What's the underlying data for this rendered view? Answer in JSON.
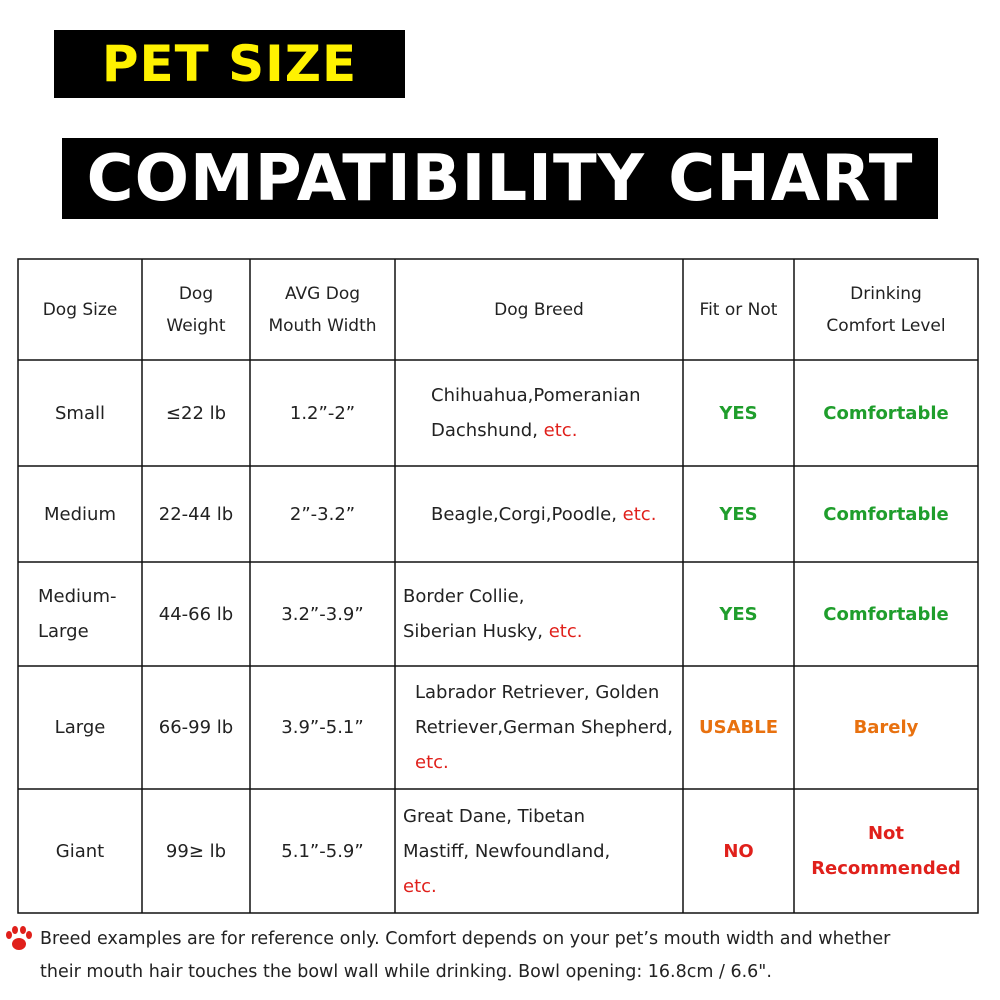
{
  "header": {
    "title1": "PET SIZE",
    "title2": "COMPATIBILITY CHART"
  },
  "table": {
    "headers": [
      [
        "Dog Size"
      ],
      [
        "Dog",
        "Weight"
      ],
      [
        "AVG Dog",
        "Mouth Width"
      ],
      [
        "Dog Breed"
      ],
      [
        "Fit or Not"
      ],
      [
        "Drinking",
        "Comfort Level"
      ]
    ],
    "rows": [
      {
        "size": [
          "Small"
        ],
        "weight": "≤22 lb",
        "mouth": "1.2”-2”",
        "breed": [
          [
            {
              "text": "Chihuahua,Pomeranian"
            }
          ],
          [
            {
              "text": "Dachshund, "
            },
            {
              "text": "etc.",
              "color": "#e0201b"
            }
          ]
        ],
        "fit": {
          "text": "YES",
          "color": "#1f9e2c"
        },
        "comfort": [
          {
            "text": "Comfortable",
            "color": "#1f9e2c"
          }
        ]
      },
      {
        "size": [
          "Medium"
        ],
        "weight": "22-44 lb",
        "mouth": "2”-3.2”",
        "breed": [
          [
            {
              "text": "Beagle,Corgi,Poodle, "
            },
            {
              "text": "etc.",
              "color": "#e0201b"
            }
          ]
        ],
        "fit": {
          "text": "YES",
          "color": "#1f9e2c"
        },
        "comfort": [
          {
            "text": "Comfortable",
            "color": "#1f9e2c"
          }
        ]
      },
      {
        "size": [
          "Medium-",
          "Large"
        ],
        "weight": "44-66 lb",
        "mouth": "3.2”-3.9”",
        "breed": [
          [
            {
              "text": "Border Collie,"
            }
          ],
          [
            {
              "text": "Siberian Husky, "
            },
            {
              "text": "etc.",
              "color": "#e0201b"
            }
          ]
        ],
        "fit": {
          "text": "YES",
          "color": "#1f9e2c"
        },
        "comfort": [
          {
            "text": "Comfortable",
            "color": "#1f9e2c"
          }
        ]
      },
      {
        "size": [
          "Large"
        ],
        "weight": "66-99 lb",
        "mouth": "3.9”-5.1”",
        "breed": [
          [
            {
              "text": "Labrador Retriever, Golden"
            }
          ],
          [
            {
              "text": "Retriever,German Shepherd,"
            }
          ],
          [
            {
              "text": "etc.",
              "color": "#e0201b"
            }
          ]
        ],
        "fit": {
          "text": "USABLE",
          "color": "#e8710f"
        },
        "comfort": [
          {
            "text": "Barely",
            "color": "#e8710f"
          }
        ]
      },
      {
        "size": [
          "Giant"
        ],
        "weight": "99≥ lb",
        "mouth": "5.1”-5.9”",
        "breed": [
          [
            {
              "text": "Great Dane, Tibetan"
            }
          ],
          [
            {
              "text": "Mastiff, Newfoundland,"
            }
          ],
          [
            {
              "text": "etc.",
              "color": "#e0201b"
            }
          ]
        ],
        "fit": {
          "text": "NO",
          "color": "#e0201b"
        },
        "comfort": [
          {
            "text": "Not",
            "color": "#e0201b"
          },
          {
            "text": "Recommended",
            "color": "#e0201b"
          }
        ]
      }
    ]
  },
  "footnote": [
    "Breed examples are for reference only. Comfort depends on your pet’s mouth width and whether",
    "their mouth hair touches the bowl wall while drinking. Bowl opening: 16.8cm / 6.6\"."
  ]
}
